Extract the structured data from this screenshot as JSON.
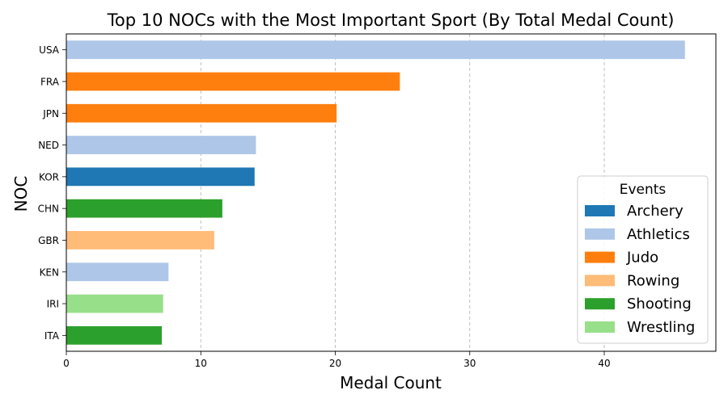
{
  "chart_data": {
    "type": "bar",
    "orientation": "horizontal",
    "title": "Top 10 NOCs with the Most Important Sport (By Total Medal Count)",
    "xlabel": "Medal Count",
    "ylabel": "NOC",
    "xlim": [
      0,
      48.3
    ],
    "xticks": [
      "0",
      "10",
      "20",
      "30",
      "40"
    ],
    "grid": "x, dashed",
    "categories": [
      "USA",
      "FRA",
      "JPN",
      "NED",
      "KOR",
      "CHN",
      "GBR",
      "KEN",
      "IRI",
      "ITA"
    ],
    "values": [
      46,
      24.8,
      20.1,
      14.1,
      14.0,
      11.6,
      11.0,
      7.6,
      7.2,
      7.1
    ],
    "sports": [
      "Athletics",
      "Judo",
      "Judo",
      "Athletics",
      "Archery",
      "Shooting",
      "Rowing",
      "Athletics",
      "Wrestling",
      "Shooting"
    ],
    "legend": {
      "title": "Events",
      "placement": "lower-right",
      "entries": [
        {
          "label": "Archery",
          "color": "#1f77b4"
        },
        {
          "label": "Athletics",
          "color": "#aec7e8"
        },
        {
          "label": "Judo",
          "color": "#ff7f0e"
        },
        {
          "label": "Rowing",
          "color": "#ffbb78"
        },
        {
          "label": "Shooting",
          "color": "#2ca02c"
        },
        {
          "label": "Wrestling",
          "color": "#98df8a"
        }
      ]
    }
  }
}
